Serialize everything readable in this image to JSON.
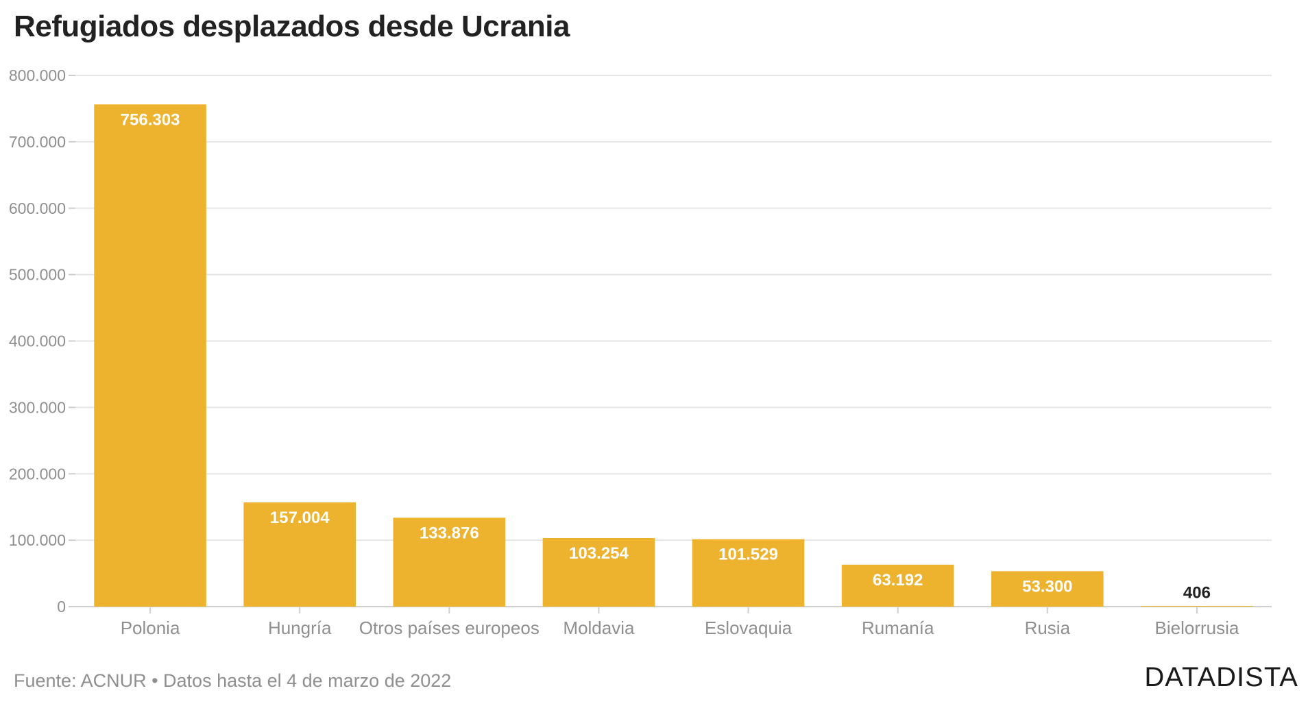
{
  "title": "Refugiados desplazados desde Ucrania",
  "source_note": "Fuente: ACNUR • Datos hasta el 4 de marzo de 2022",
  "brand": "DATADISTA",
  "chart_data": {
    "type": "bar",
    "title": "Refugiados desplazados desde Ucrania",
    "categories": [
      "Polonia",
      "Hungría",
      "Otros países europeos",
      "Moldavia",
      "Eslovaquia",
      "Rumanía",
      "Rusia",
      "Bielorrusia"
    ],
    "values": [
      756303,
      157004,
      133876,
      103254,
      101529,
      63192,
      53300,
      406
    ],
    "data_labels": [
      "756.303",
      "157.004",
      "133.876",
      "103.254",
      "101.529",
      "63.192",
      "53.300",
      "406"
    ],
    "ylim": [
      0,
      800000
    ],
    "yticks": [
      0,
      100000,
      200000,
      300000,
      400000,
      500000,
      600000,
      700000,
      800000
    ],
    "ytick_labels": [
      "0",
      "100.000",
      "200.000",
      "300.000",
      "400.000",
      "500.000",
      "600.000",
      "700.000",
      "800.000"
    ],
    "xlabel": "",
    "ylabel": "",
    "grid": true,
    "bar_color": "#edb32f",
    "label_color_inside": "#ffffff",
    "label_color_outside": "#222222"
  }
}
